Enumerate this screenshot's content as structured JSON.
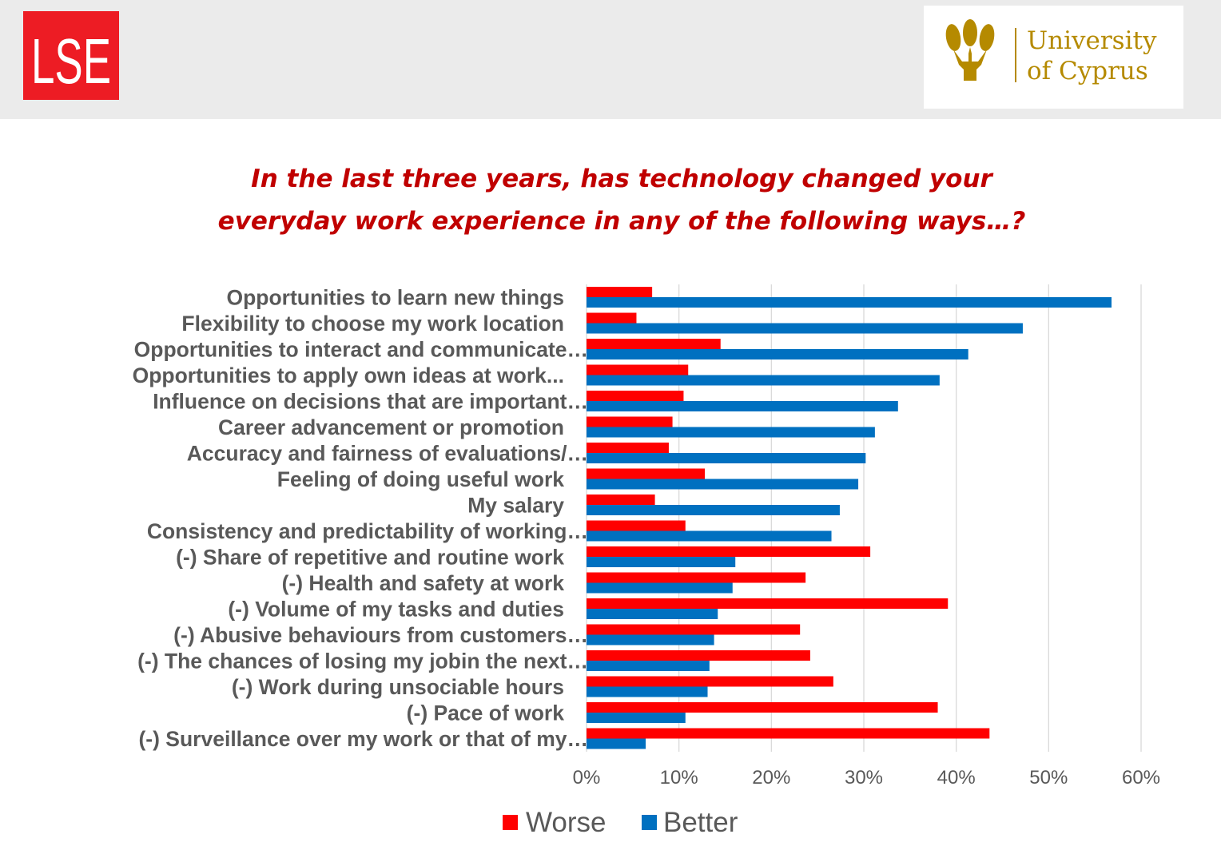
{
  "header": {
    "lse_logo": {
      "text": "LSE",
      "color": "#ed1c24"
    },
    "ucy_logo": {
      "line1": "University",
      "line2": "of Cyprus",
      "color": "#b58a00"
    },
    "background": "#ebebeb"
  },
  "title": {
    "line1": "In the last three years, has technology changed your",
    "line2": "everyday work experience in any of the following ways…?",
    "color": "#c00000"
  },
  "chart_data": {
    "type": "bar",
    "orientation": "horizontal",
    "title": "",
    "xlabel": "",
    "ylabel": "",
    "xlim": [
      0,
      0.6
    ],
    "x_ticks": [
      0,
      0.1,
      0.2,
      0.3,
      0.4,
      0.5,
      0.6
    ],
    "x_tick_labels": [
      "0%",
      "10%",
      "20%",
      "30%",
      "40%",
      "50%",
      "60%"
    ],
    "grid": "vertical",
    "legend_position": "bottom",
    "categories": [
      "Opportunities to learn new things",
      "Flexibility to choose my work location",
      "Opportunities to interact and communicate…",
      "Opportunities to apply own ideas at work...",
      "Influence on decisions that are important…",
      "Career advancement or promotion",
      "Accuracy and fairness of evaluations/…",
      "Feeling of doing useful work",
      "My salary",
      "Consistency and predictability of working…",
      "(-) Share of repetitive and routine work",
      "(-) Health and safety at work",
      "(-) Volume of my tasks and duties",
      "(-) Abusive behaviours from customers…",
      "(-) The chances of losing my jobin the next…",
      "(-) Work during unsociable hours",
      "(-) Pace of work",
      "(-) Surveillance over my work or that of my…"
    ],
    "series": [
      {
        "name": "Worse",
        "color": "#ff0000",
        "values": [
          0.071,
          0.054,
          0.145,
          0.11,
          0.105,
          0.093,
          0.089,
          0.128,
          0.074,
          0.107,
          0.307,
          0.237,
          0.391,
          0.231,
          0.242,
          0.267,
          0.38,
          0.436
        ]
      },
      {
        "name": "Better",
        "color": "#0070c0",
        "values": [
          0.568,
          0.472,
          0.413,
          0.382,
          0.337,
          0.312,
          0.302,
          0.294,
          0.274,
          0.265,
          0.161,
          0.158,
          0.142,
          0.138,
          0.133,
          0.131,
          0.107,
          0.064
        ]
      }
    ]
  }
}
